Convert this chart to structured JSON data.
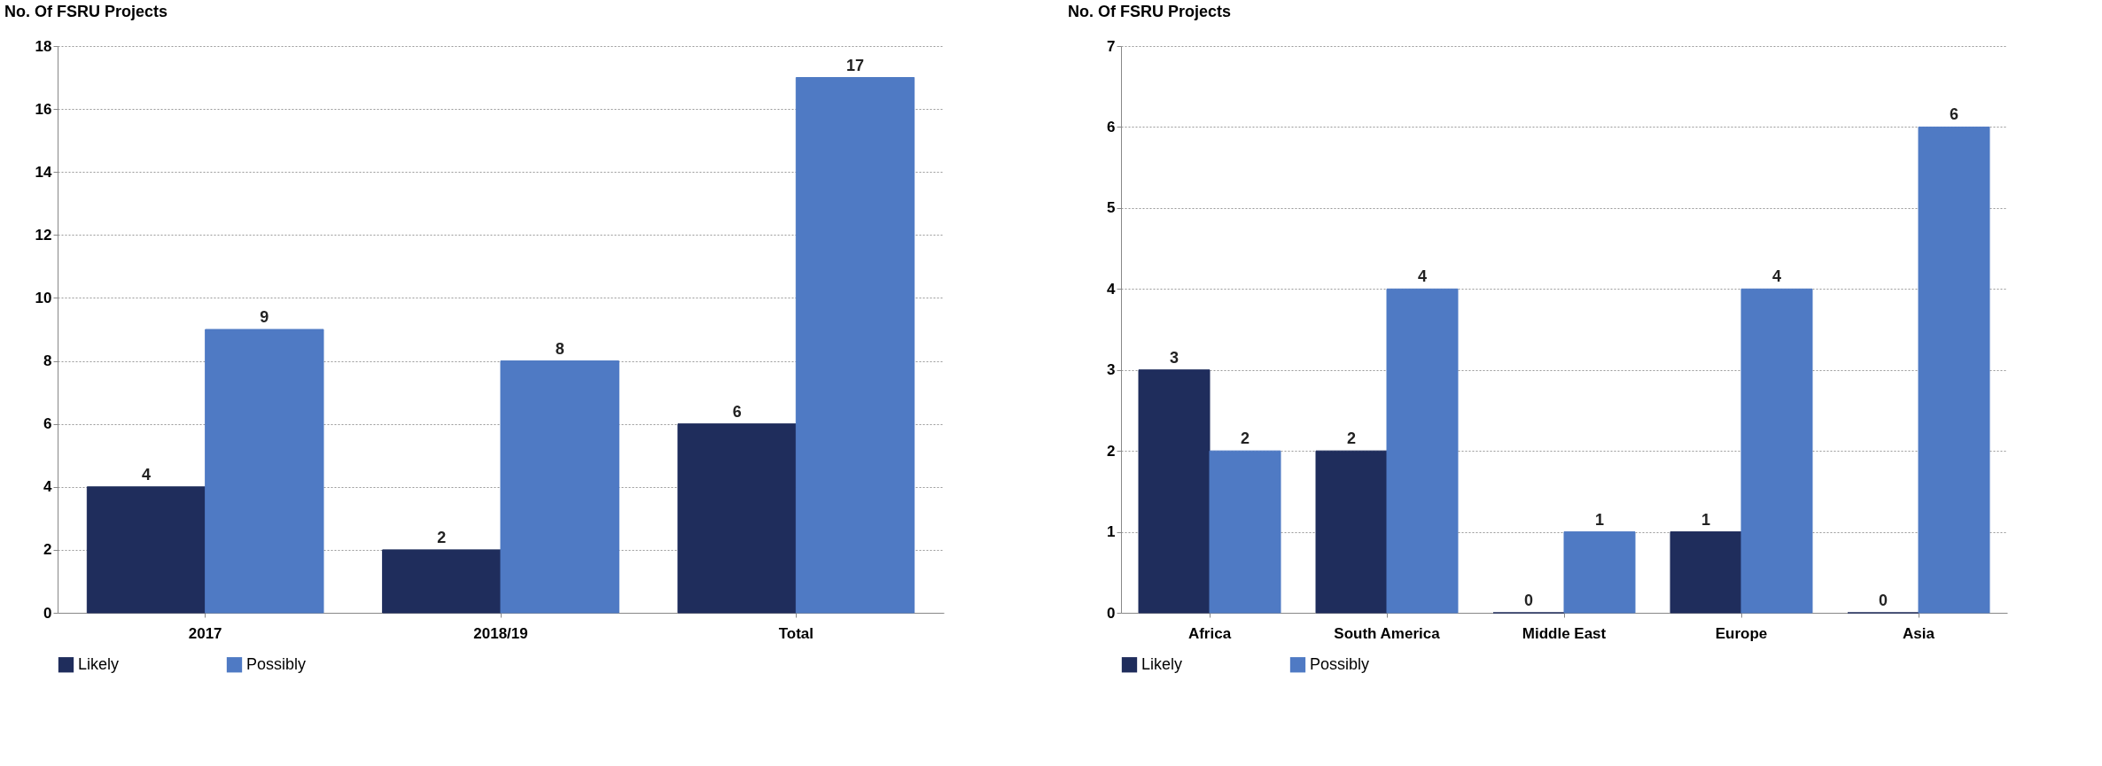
{
  "chart_data": [
    {
      "type": "bar",
      "title": "No. Of FSRU Projects",
      "categories": [
        "2017",
        "2018/19",
        "Total"
      ],
      "series": [
        {
          "name": "Likely",
          "color": "#1f2d5c",
          "values": [
            4,
            2,
            6
          ]
        },
        {
          "name": "Possibly",
          "color": "#4f7ac4",
          "values": [
            9,
            8,
            17
          ]
        }
      ],
      "ylim": [
        0,
        18
      ],
      "yticks": [
        0,
        2,
        4,
        6,
        8,
        10,
        12,
        14,
        16,
        18
      ],
      "grid": "y",
      "legend": "bottom",
      "data_labels": true
    },
    {
      "type": "bar",
      "title": "No. Of FSRU Projects",
      "categories": [
        "Africa",
        "South America",
        "Middle East",
        "Europe",
        "Asia"
      ],
      "series": [
        {
          "name": "Likely",
          "color": "#1f2d5c",
          "values": [
            3,
            2,
            0,
            1,
            0
          ]
        },
        {
          "name": "Possibly",
          "color": "#4f7ac4",
          "values": [
            2,
            4,
            1,
            4,
            6
          ]
        }
      ],
      "ylim": [
        0,
        7
      ],
      "yticks": [
        0,
        1,
        2,
        3,
        4,
        5,
        6,
        7
      ],
      "grid": "y",
      "legend": "bottom",
      "data_labels": true
    }
  ]
}
